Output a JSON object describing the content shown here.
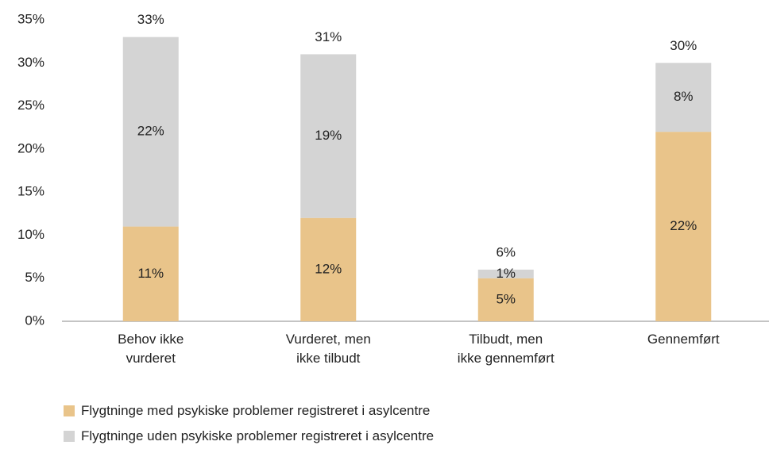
{
  "chart_data": {
    "type": "stacked_bar",
    "categories": [
      "Behov ikke\nvurderet",
      "Vurderet, men\nikke tilbudt",
      "Tilbudt, men\nikke gennemført",
      "Gennemført"
    ],
    "series": [
      {
        "name": "Flygtninge med psykiske problemer registreret i asylcentre",
        "color": "#e9c48a",
        "values": [
          11,
          12,
          5,
          22
        ],
        "value_labels": [
          "11%",
          "12%",
          "5%",
          "22%"
        ]
      },
      {
        "name": "Flygtninge uden psykiske problemer registreret i asylcentre",
        "color": "#d4d4d4",
        "values": [
          22,
          19,
          1,
          8
        ],
        "value_labels": [
          "22%",
          "19%",
          "1%",
          "8%"
        ]
      }
    ],
    "totals": [
      33,
      31,
      6,
      30
    ],
    "total_labels": [
      "33%",
      "31%",
      "6%",
      "30%"
    ],
    "ylim": [
      0,
      35
    ],
    "yticks": [
      {
        "value": 0,
        "label": "0%"
      },
      {
        "value": 5,
        "label": "5%"
      },
      {
        "value": 10,
        "label": "10%"
      },
      {
        "value": 15,
        "label": "15%"
      },
      {
        "value": 20,
        "label": "20%"
      },
      {
        "value": 25,
        "label": "25%"
      },
      {
        "value": 30,
        "label": "30%"
      },
      {
        "value": 35,
        "label": "35%"
      }
    ],
    "grid": false
  }
}
